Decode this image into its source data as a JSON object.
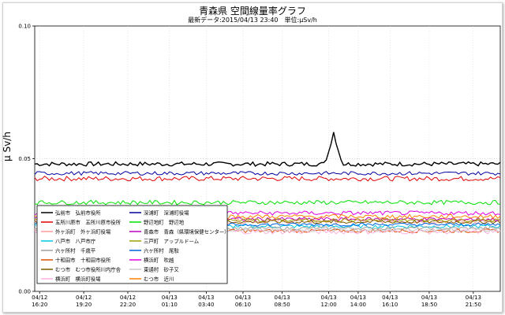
{
  "chart_data": {
    "type": "line",
    "title": "青森県 空間線量率グラフ",
    "subtitle": "最新データ:2015/04/13 23:40　単位:μSv/h",
    "ylabel": "μ Sv/h",
    "xlabel": "",
    "ylim": [
      0.0,
      0.1
    ],
    "yticks": [
      "0.00",
      "0.05",
      "0.10"
    ],
    "ytick_values": [
      0.0,
      0.05,
      0.1
    ],
    "grid": true,
    "legend_placement": "bottom-left",
    "x_tick_labels": [
      {
        "date": "04/12",
        "time": "16:20"
      },
      {
        "date": "04/12",
        "time": "19:20"
      },
      {
        "date": "04/12",
        "time": "22:20"
      },
      {
        "date": "04/13",
        "time": "01:10"
      },
      {
        "date": "04/13",
        "time": "03:40"
      },
      {
        "date": "04/13",
        "time": "06:10"
      },
      {
        "date": "04/13",
        "time": "08:50"
      },
      {
        "date": "04/13",
        "time": "12:00"
      },
      {
        "date": "04/13",
        "time": "14:00"
      },
      {
        "date": "04/13",
        "time": "16:10"
      },
      {
        "date": "04/13",
        "time": "18:50"
      },
      {
        "date": "04/13",
        "time": "21:50"
      }
    ],
    "x_start": "2015/04/12 16:00",
    "x_end": "2015/04/13 23:40",
    "series": [
      {
        "name": "弘前市　弘前市役所",
        "color": "#000000",
        "level": 0.048,
        "noise": 0.0008,
        "spike": {
          "at": "2015/04/13 12:20",
          "peak": 0.06
        }
      },
      {
        "name": "五所川原市　五所川原市役所",
        "color": "#e00000",
        "level": 0.0425,
        "noise": 0.0009
      },
      {
        "name": "外ヶ浜町　外ヶ浜町役場",
        "color": "#ff9a9a",
        "level": 0.0265,
        "noise": 0.0009
      },
      {
        "name": "八戸市　八戸市庁",
        "color": "#00c8e0",
        "level": 0.0245,
        "noise": 0.0007
      },
      {
        "name": "六ヶ所村　千歳平",
        "color": "#a0a0a0",
        "level": 0.0238,
        "noise": 0.0006
      },
      {
        "name": "十和田市　十和田市役所",
        "color": "#e05000",
        "level": 0.0228,
        "noise": 0.0007
      },
      {
        "name": "むつ市　むつ市役所川内庁舎",
        "color": "#7a5a00",
        "level": 0.0262,
        "noise": 0.0007
      },
      {
        "name": "横浜町　横浜町役場",
        "color": "#ffb0e0",
        "level": 0.0225,
        "noise": 0.0009
      },
      {
        "name": "深浦町　深浦町役場",
        "color": "#0000a0",
        "level": 0.0445,
        "noise": 0.0007
      },
      {
        "name": "野辺地町　野辺地",
        "color": "#00e000",
        "level": 0.0335,
        "noise": 0.0008
      },
      {
        "name": "青森市　青森（県環境保健センター）",
        "color": "#c000c0",
        "level": 0.0272,
        "noise": 0.0007
      },
      {
        "name": "三戸町　アップルドーム",
        "color": "#a0a000",
        "level": 0.0268,
        "noise": 0.0007
      },
      {
        "name": "六ヶ所村　尾駮",
        "color": "#0060e0",
        "level": 0.0252,
        "noise": 0.0006
      },
      {
        "name": "横浜町　吹越",
        "color": "#e000e0",
        "level": 0.0295,
        "noise": 0.0008
      },
      {
        "name": "東通村　砂子又",
        "color": "#c8c8c8",
        "level": 0.0232,
        "noise": 0.0007
      },
      {
        "name": "むつ市　近川",
        "color": "#ff8000",
        "level": 0.0282,
        "noise": 0.0008
      }
    ]
  }
}
